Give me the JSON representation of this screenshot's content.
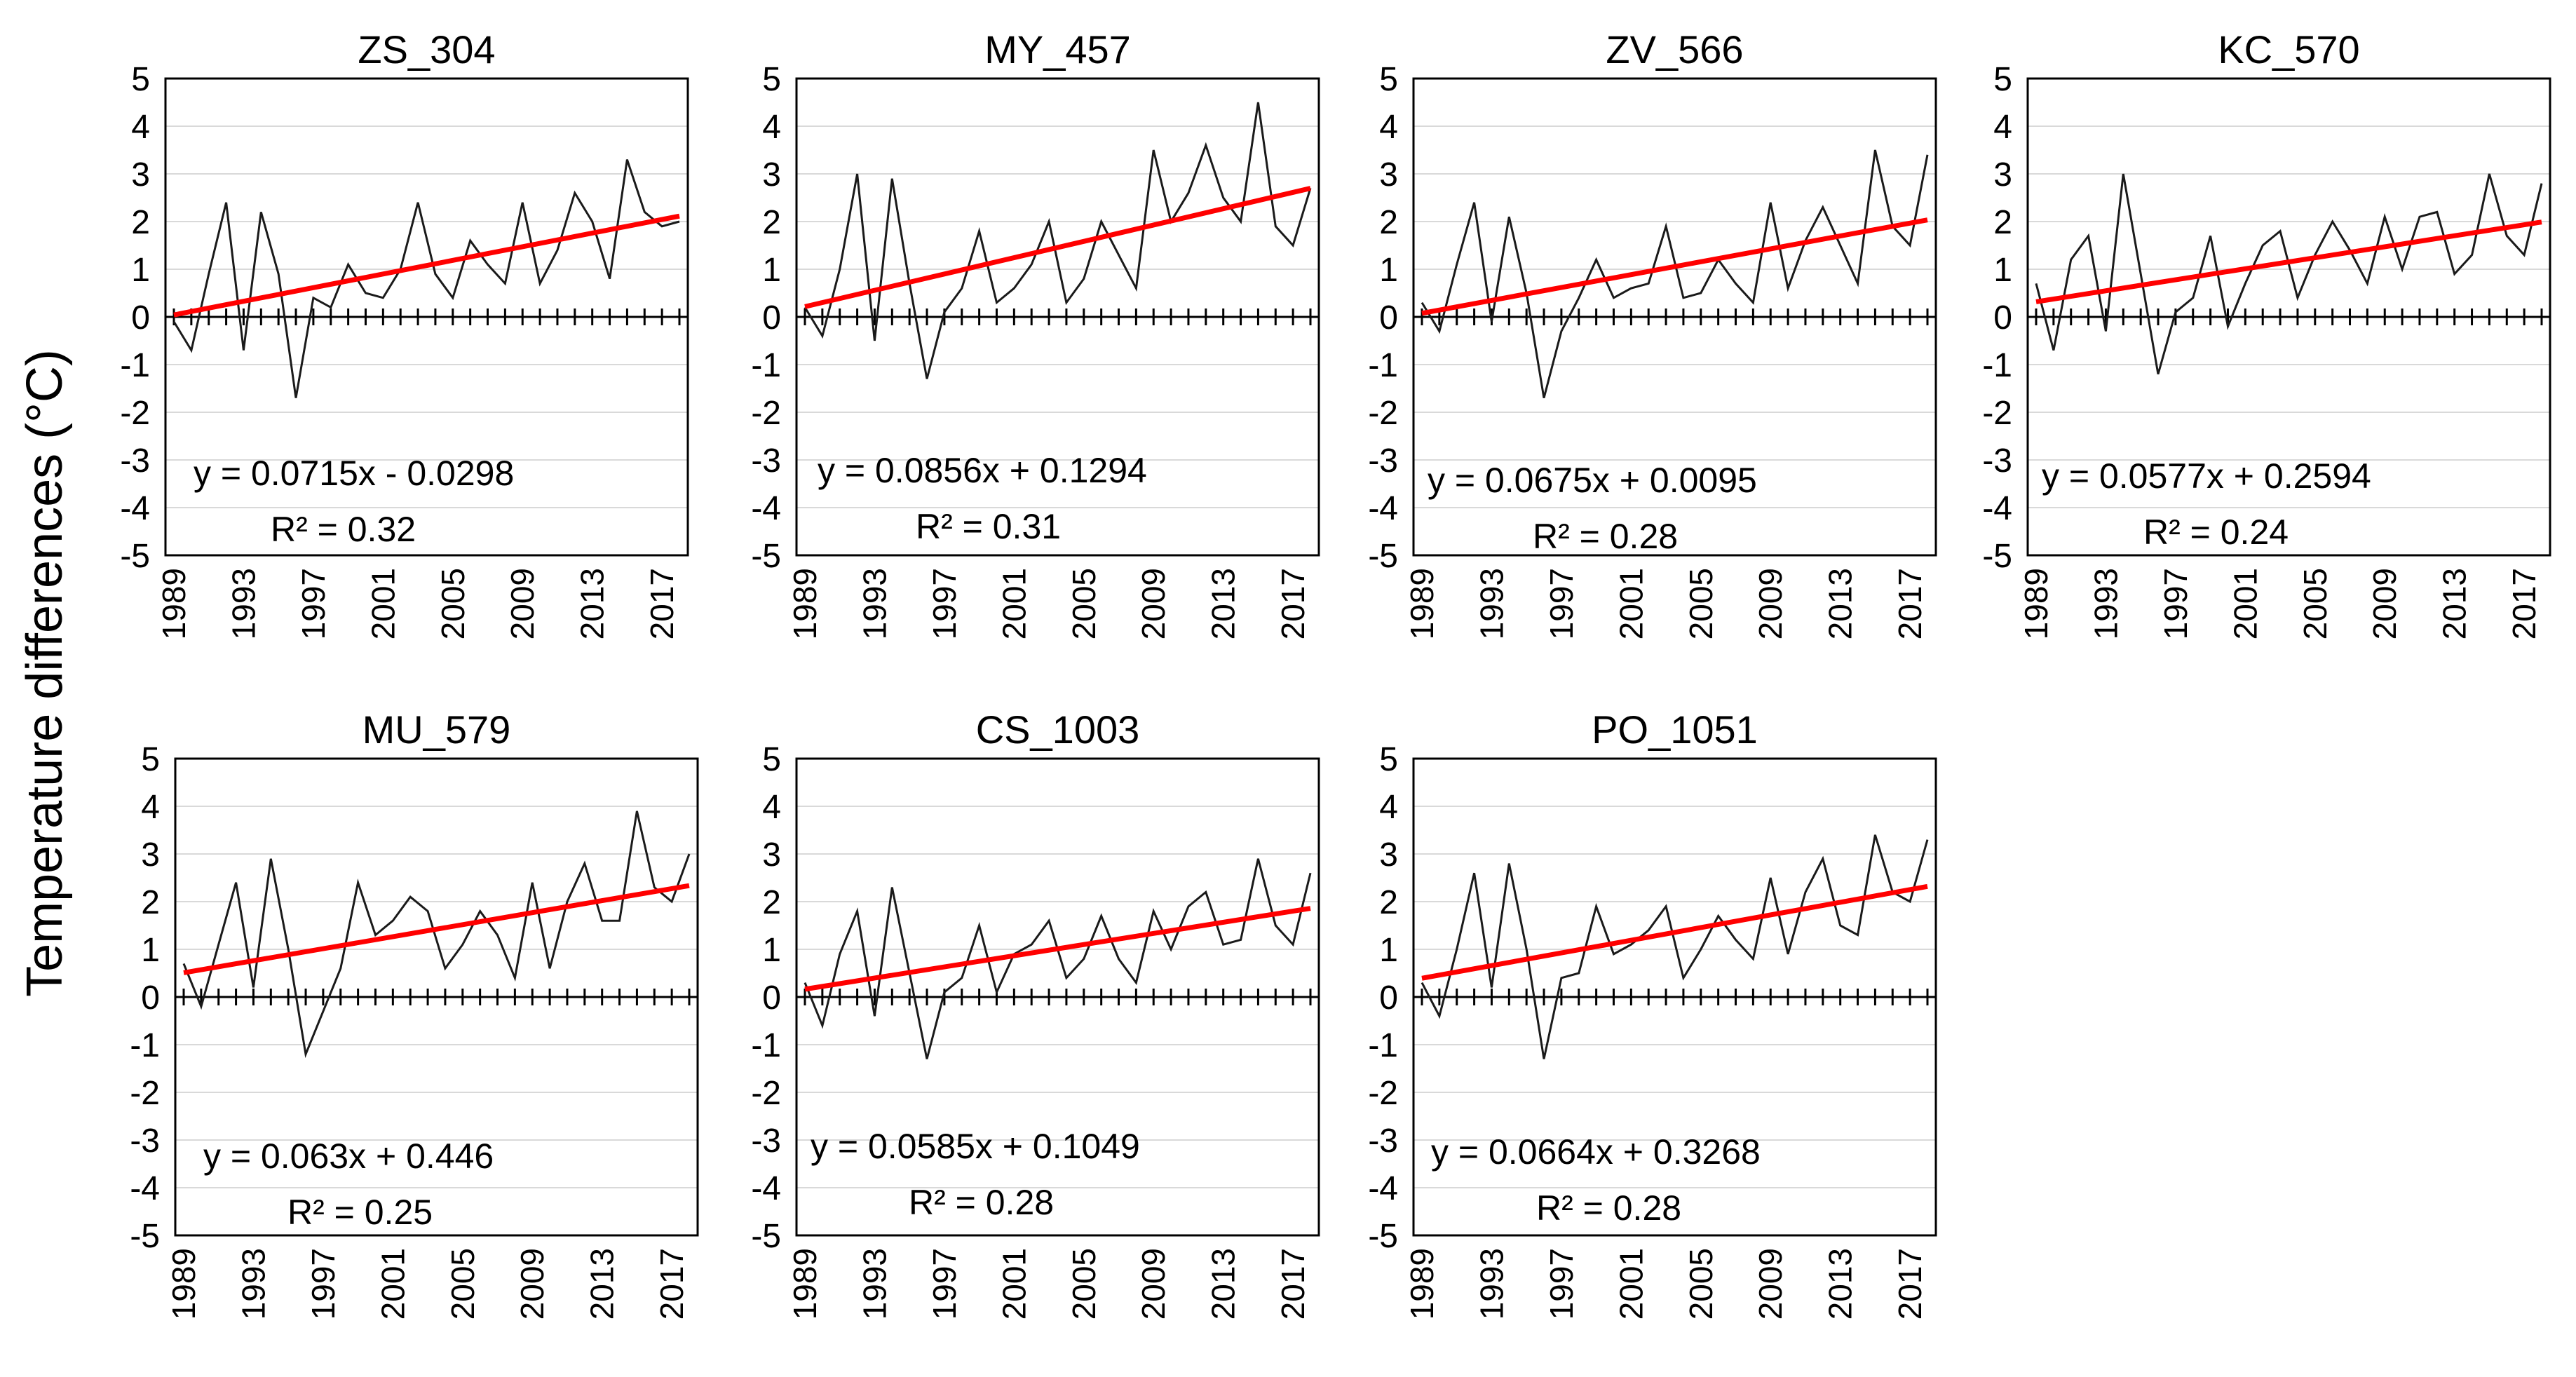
{
  "figure": {
    "ylabel": "Temperature differences (°C)"
  },
  "chart_data": [
    {
      "type": "line",
      "title": "ZS_304",
      "x": [
        1989,
        1990,
        1991,
        1992,
        1993,
        1994,
        1995,
        1996,
        1997,
        1998,
        1999,
        2000,
        2001,
        2002,
        2003,
        2004,
        2005,
        2006,
        2007,
        2008,
        2009,
        2010,
        2011,
        2012,
        2013,
        2014,
        2015,
        2016,
        2017,
        2018
      ],
      "values": [
        -0.1,
        -0.7,
        0.9,
        2.4,
        -0.7,
        2.2,
        0.9,
        -1.7,
        0.4,
        0.2,
        1.1,
        0.5,
        0.4,
        1.0,
        2.4,
        0.9,
        0.4,
        1.6,
        1.1,
        0.7,
        2.4,
        0.7,
        1.4,
        2.6,
        2.0,
        0.8,
        3.3,
        2.2,
        1.9,
        2.0
      ],
      "trend": {
        "slope": 0.0715,
        "intercept": -0.0298
      },
      "equation": "y = 0.0715x - 0.0298",
      "r2": "R² = 0.32",
      "ylim": [
        -5,
        5
      ],
      "yticks": [
        -5,
        -4,
        -3,
        -2,
        -1,
        0,
        1,
        2,
        3,
        4,
        5
      ],
      "xtick_labels": [
        "1989",
        "1993",
        "1997",
        "2001",
        "2005",
        "2009",
        "2013",
        "2017"
      ],
      "grid": true,
      "colors": {
        "series": "#1a1a1a",
        "trend": "#ff0000"
      }
    },
    {
      "type": "line",
      "title": "MY_457",
      "x": [
        1989,
        1990,
        1991,
        1992,
        1993,
        1994,
        1995,
        1996,
        1997,
        1998,
        1999,
        2000,
        2001,
        2002,
        2003,
        2004,
        2005,
        2006,
        2007,
        2008,
        2009,
        2010,
        2011,
        2012,
        2013,
        2014,
        2015,
        2016,
        2017,
        2018
      ],
      "values": [
        0.2,
        -0.4,
        1.0,
        3.0,
        -0.5,
        2.9,
        0.7,
        -1.3,
        0.1,
        0.6,
        1.8,
        0.3,
        0.6,
        1.1,
        2.0,
        0.3,
        0.8,
        2.0,
        1.3,
        0.6,
        3.5,
        2.0,
        2.6,
        3.6,
        2.5,
        2.0,
        4.5,
        1.9,
        1.5,
        2.7
      ],
      "trend": {
        "slope": 0.0856,
        "intercept": 0.1294
      },
      "equation": "y = 0.0856x + 0.1294",
      "r2": "R² = 0.31",
      "ylim": [
        -5,
        5
      ],
      "yticks": [
        -5,
        -4,
        -3,
        -2,
        -1,
        0,
        1,
        2,
        3,
        4,
        5
      ],
      "xtick_labels": [
        "1989",
        "1993",
        "1997",
        "2001",
        "2005",
        "2009",
        "2013",
        "2017"
      ],
      "grid": true,
      "colors": {
        "series": "#1a1a1a",
        "trend": "#ff0000"
      }
    },
    {
      "type": "line",
      "title": "ZV_566",
      "x": [
        1989,
        1990,
        1991,
        1992,
        1993,
        1994,
        1995,
        1996,
        1997,
        1998,
        1999,
        2000,
        2001,
        2002,
        2003,
        2004,
        2005,
        2006,
        2007,
        2008,
        2009,
        2010,
        2011,
        2012,
        2013,
        2014,
        2015,
        2016,
        2017,
        2018
      ],
      "values": [
        0.3,
        -0.3,
        1.1,
        2.4,
        -0.1,
        2.1,
        0.5,
        -1.7,
        -0.3,
        0.4,
        1.2,
        0.4,
        0.6,
        0.7,
        1.9,
        0.4,
        0.5,
        1.2,
        0.7,
        0.3,
        2.4,
        0.6,
        1.6,
        2.3,
        1.5,
        0.7,
        3.5,
        1.9,
        1.5,
        3.4
      ],
      "trend": {
        "slope": 0.0675,
        "intercept": 0.0095
      },
      "equation": "y = 0.0675x + 0.0095",
      "r2": "R² = 0.28",
      "ylim": [
        -5,
        5
      ],
      "yticks": [
        -5,
        -4,
        -3,
        -2,
        -1,
        0,
        1,
        2,
        3,
        4,
        5
      ],
      "xtick_labels": [
        "1989",
        "1993",
        "1997",
        "2001",
        "2005",
        "2009",
        "2013",
        "2017"
      ],
      "grid": true,
      "colors": {
        "series": "#1a1a1a",
        "trend": "#ff0000"
      }
    },
    {
      "type": "line",
      "title": "KC_570",
      "x": [
        1989,
        1990,
        1991,
        1992,
        1993,
        1994,
        1995,
        1996,
        1997,
        1998,
        1999,
        2000,
        2001,
        2002,
        2003,
        2004,
        2005,
        2006,
        2007,
        2008,
        2009,
        2010,
        2011,
        2012,
        2013,
        2014,
        2015,
        2016,
        2017,
        2018
      ],
      "values": [
        0.7,
        -0.7,
        1.2,
        1.7,
        -0.3,
        3.0,
        0.9,
        -1.2,
        0.1,
        0.4,
        1.7,
        -0.2,
        0.7,
        1.5,
        1.8,
        0.4,
        1.3,
        2.0,
        1.4,
        0.7,
        2.1,
        1.0,
        2.1,
        2.2,
        0.9,
        1.3,
        3.0,
        1.7,
        1.3,
        2.8
      ],
      "trend": {
        "slope": 0.0577,
        "intercept": 0.2594
      },
      "equation": "y = 0.0577x + 0.2594",
      "r2": "R² = 0.24",
      "ylim": [
        -5,
        5
      ],
      "yticks": [
        -5,
        -4,
        -3,
        -2,
        -1,
        0,
        1,
        2,
        3,
        4,
        5
      ],
      "xtick_labels": [
        "1989",
        "1993",
        "1997",
        "2001",
        "2005",
        "2009",
        "2013",
        "2017"
      ],
      "grid": true,
      "colors": {
        "series": "#1a1a1a",
        "trend": "#ff0000"
      }
    },
    {
      "type": "line",
      "title": "MU_579",
      "x": [
        1989,
        1990,
        1991,
        1992,
        1993,
        1994,
        1995,
        1996,
        1997,
        1998,
        1999,
        2000,
        2001,
        2002,
        2003,
        2004,
        2005,
        2006,
        2007,
        2008,
        2009,
        2010,
        2011,
        2012,
        2013,
        2014,
        2015,
        2016,
        2017,
        2018
      ],
      "values": [
        0.7,
        -0.2,
        1.1,
        2.4,
        0.2,
        2.9,
        1.0,
        -1.2,
        -0.3,
        0.6,
        2.4,
        1.3,
        1.6,
        2.1,
        1.8,
        0.6,
        1.1,
        1.8,
        1.3,
        0.4,
        2.4,
        0.6,
        2.0,
        2.8,
        1.6,
        1.6,
        3.9,
        2.3,
        2.0,
        3.0
      ],
      "trend": {
        "slope": 0.063,
        "intercept": 0.446
      },
      "equation": "y = 0.063x + 0.446",
      "r2": "R² = 0.25",
      "ylim": [
        -5,
        5
      ],
      "yticks": [
        -5,
        -4,
        -3,
        -2,
        -1,
        0,
        1,
        2,
        3,
        4,
        5
      ],
      "xtick_labels": [
        "1989",
        "1993",
        "1997",
        "2001",
        "2005",
        "2009",
        "2013",
        "2017"
      ],
      "grid": true,
      "colors": {
        "series": "#1a1a1a",
        "trend": "#ff0000"
      }
    },
    {
      "type": "line",
      "title": "CS_1003",
      "x": [
        1989,
        1990,
        1991,
        1992,
        1993,
        1994,
        1995,
        1996,
        1997,
        1998,
        1999,
        2000,
        2001,
        2002,
        2003,
        2004,
        2005,
        2006,
        2007,
        2008,
        2009,
        2010,
        2011,
        2012,
        2013,
        2014,
        2015,
        2016,
        2017,
        2018
      ],
      "values": [
        0.3,
        -0.6,
        0.9,
        1.8,
        -0.4,
        2.3,
        0.5,
        -1.3,
        0.1,
        0.4,
        1.5,
        0.1,
        0.9,
        1.1,
        1.6,
        0.4,
        0.8,
        1.7,
        0.8,
        0.3,
        1.8,
        1.0,
        1.9,
        2.2,
        1.1,
        1.2,
        2.9,
        1.5,
        1.1,
        2.6
      ],
      "trend": {
        "slope": 0.0585,
        "intercept": 0.1049
      },
      "equation": "y = 0.0585x + 0.1049",
      "r2": "R² = 0.28",
      "ylim": [
        -5,
        5
      ],
      "yticks": [
        -5,
        -4,
        -3,
        -2,
        -1,
        0,
        1,
        2,
        3,
        4,
        5
      ],
      "xtick_labels": [
        "1989",
        "1993",
        "1997",
        "2001",
        "2005",
        "2009",
        "2013",
        "2017"
      ],
      "grid": true,
      "colors": {
        "series": "#1a1a1a",
        "trend": "#ff0000"
      }
    },
    {
      "type": "line",
      "title": "PO_1051",
      "x": [
        1989,
        1990,
        1991,
        1992,
        1993,
        1994,
        1995,
        1996,
        1997,
        1998,
        1999,
        2000,
        2001,
        2002,
        2003,
        2004,
        2005,
        2006,
        2007,
        2008,
        2009,
        2010,
        2011,
        2012,
        2013,
        2014,
        2015,
        2016,
        2017,
        2018
      ],
      "values": [
        0.3,
        -0.4,
        1.0,
        2.6,
        0.2,
        2.8,
        1.0,
        -1.3,
        0.4,
        0.5,
        1.9,
        0.9,
        1.1,
        1.4,
        1.9,
        0.4,
        1.0,
        1.7,
        1.2,
        0.8,
        2.5,
        0.9,
        2.2,
        2.9,
        1.5,
        1.3,
        3.4,
        2.2,
        2.0,
        3.3
      ],
      "trend": {
        "slope": 0.0664,
        "intercept": 0.3268
      },
      "equation": "y = 0.0664x + 0.3268",
      "r2": "R² = 0.28",
      "ylim": [
        -5,
        5
      ],
      "yticks": [
        -5,
        -4,
        -3,
        -2,
        -1,
        0,
        1,
        2,
        3,
        4,
        5
      ],
      "xtick_labels": [
        "1989",
        "1993",
        "1997",
        "2001",
        "2005",
        "2009",
        "2013",
        "2017"
      ],
      "grid": true,
      "colors": {
        "series": "#1a1a1a",
        "trend": "#ff0000"
      }
    }
  ]
}
